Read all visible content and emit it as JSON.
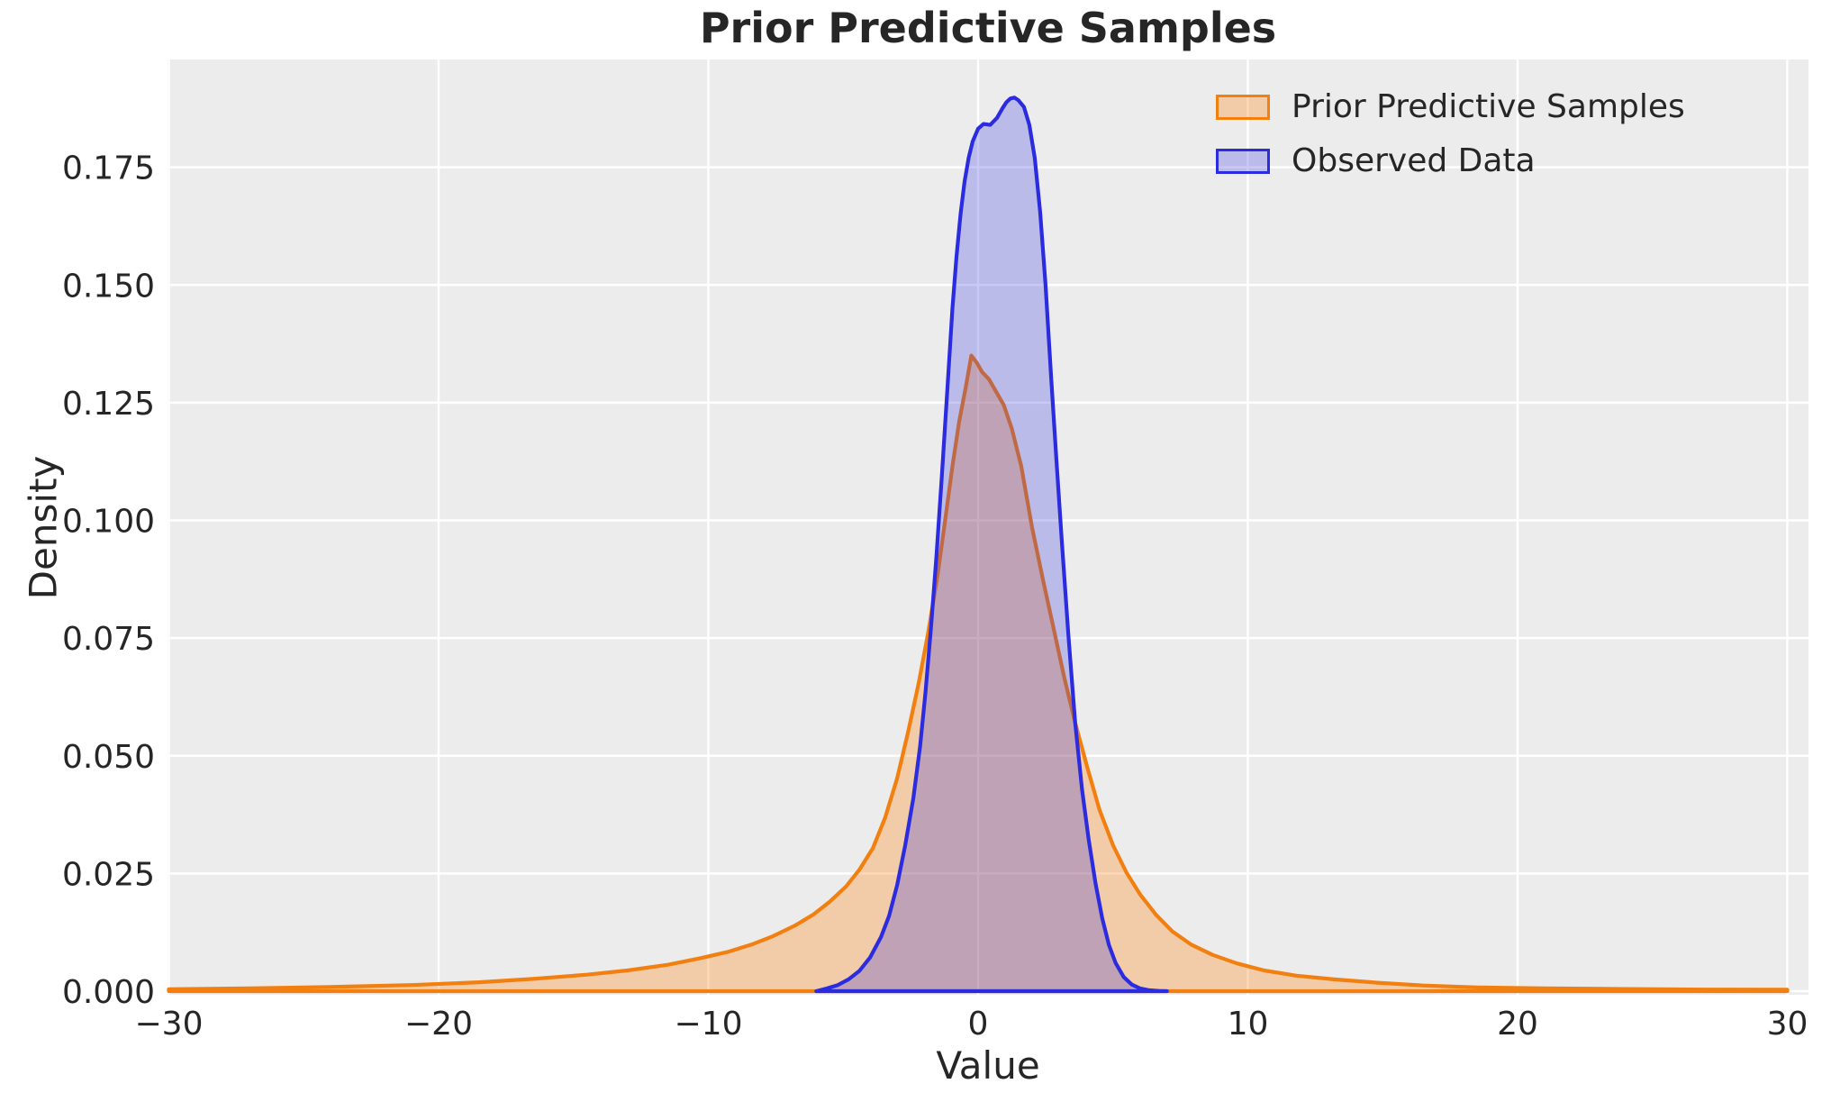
{
  "figure": {
    "title": "Prior Predictive Samples",
    "xlabel": "Value",
    "ylabel": "Density"
  },
  "chart_data": {
    "type": "area",
    "subtype": "kde-density",
    "title": "Prior Predictive Samples",
    "xlabel": "Value",
    "ylabel": "Density",
    "xlim": [
      -30,
      30
    ],
    "ylim": [
      0,
      0.198
    ],
    "x_ticks": [
      -30,
      -20,
      -10,
      0,
      10,
      20,
      30
    ],
    "y_ticks": [
      0,
      0.025,
      0.05,
      0.075,
      0.1,
      0.125,
      0.15,
      0.175
    ],
    "grid": true,
    "legend_position": "upper right",
    "background_color": "#ececec",
    "gridline_color": "#ffffff",
    "text_color": "#262626",
    "series": [
      {
        "name": "Prior Predictive Samples",
        "line_color": "#f28011",
        "fill_color": "rgba(255,127,14,0.30)",
        "peak": {
          "x": -0.25,
          "density": 0.135
        },
        "x": [
          -30,
          -27,
          -24,
          -21,
          -18.5,
          -16.5,
          -14.5,
          -13,
          -11.5,
          -10.3,
          -9.3,
          -8.4,
          -7.6,
          -6.8,
          -6.1,
          -5.5,
          -4.9,
          -4.4,
          -3.9,
          -3.45,
          -3.0,
          -2.6,
          -2.2,
          -1.85,
          -1.5,
          -1.2,
          -0.95,
          -0.7,
          -0.45,
          -0.25,
          -0.05,
          0.15,
          0.4,
          0.65,
          0.95,
          1.25,
          1.6,
          2.0,
          2.4,
          2.8,
          3.2,
          3.6,
          4.05,
          4.5,
          5.0,
          5.5,
          6.0,
          6.6,
          7.2,
          7.9,
          8.7,
          9.6,
          10.6,
          11.8,
          13.2,
          14.8,
          16.5,
          18.5,
          21,
          24,
          27,
          30
        ],
        "y": [
          0.0004,
          0.0006,
          0.0009,
          0.0013,
          0.0019,
          0.0026,
          0.0035,
          0.0044,
          0.0056,
          0.007,
          0.0083,
          0.0099,
          0.0117,
          0.0139,
          0.0163,
          0.019,
          0.0222,
          0.0258,
          0.0304,
          0.0368,
          0.0452,
          0.0549,
          0.0655,
          0.0762,
          0.0885,
          0.101,
          0.1115,
          0.121,
          0.1285,
          0.135,
          0.1335,
          0.1315,
          0.13,
          0.1275,
          0.1245,
          0.1195,
          0.1115,
          0.0985,
          0.0875,
          0.077,
          0.0665,
          0.057,
          0.0475,
          0.0385,
          0.031,
          0.0252,
          0.0206,
          0.0162,
          0.0127,
          0.0099,
          0.0077,
          0.0059,
          0.0044,
          0.0033,
          0.0025,
          0.0018,
          0.0012,
          0.0008,
          0.0006,
          0.00045,
          0.00035,
          0.0003
        ]
      },
      {
        "name": "Observed Data",
        "line_color": "#2b2be0",
        "fill_color": "rgba(40,40,224,0.25)",
        "peak": {
          "x": 1.3,
          "density": 0.19
        },
        "x": [
          -6.0,
          -5.6,
          -5.2,
          -4.8,
          -4.4,
          -4.0,
          -3.6,
          -3.3,
          -3.0,
          -2.7,
          -2.4,
          -2.15,
          -1.95,
          -1.75,
          -1.55,
          -1.35,
          -1.15,
          -0.95,
          -0.8,
          -0.65,
          -0.5,
          -0.35,
          -0.2,
          0.0,
          0.2,
          0.45,
          0.7,
          0.9,
          1.05,
          1.2,
          1.35,
          1.5,
          1.7,
          1.9,
          2.1,
          2.3,
          2.5,
          2.7,
          2.9,
          3.1,
          3.35,
          3.6,
          3.85,
          4.1,
          4.35,
          4.6,
          4.85,
          5.1,
          5.4,
          5.7,
          6.0,
          6.35,
          6.7,
          7.0
        ],
        "y": [
          0.0,
          0.0006,
          0.0013,
          0.0025,
          0.0043,
          0.0072,
          0.0115,
          0.016,
          0.0225,
          0.031,
          0.041,
          0.052,
          0.0635,
          0.077,
          0.092,
          0.109,
          0.127,
          0.145,
          0.156,
          0.165,
          0.172,
          0.177,
          0.1805,
          0.1832,
          0.1842,
          0.184,
          0.1855,
          0.1875,
          0.1888,
          0.1896,
          0.1898,
          0.1892,
          0.1878,
          0.184,
          0.177,
          0.1655,
          0.15,
          0.131,
          0.113,
          0.096,
          0.0755,
          0.057,
          0.043,
          0.0322,
          0.023,
          0.0155,
          0.0098,
          0.006,
          0.003,
          0.0014,
          0.0006,
          0.0002,
          5e-05,
          0.0
        ]
      }
    ]
  }
}
